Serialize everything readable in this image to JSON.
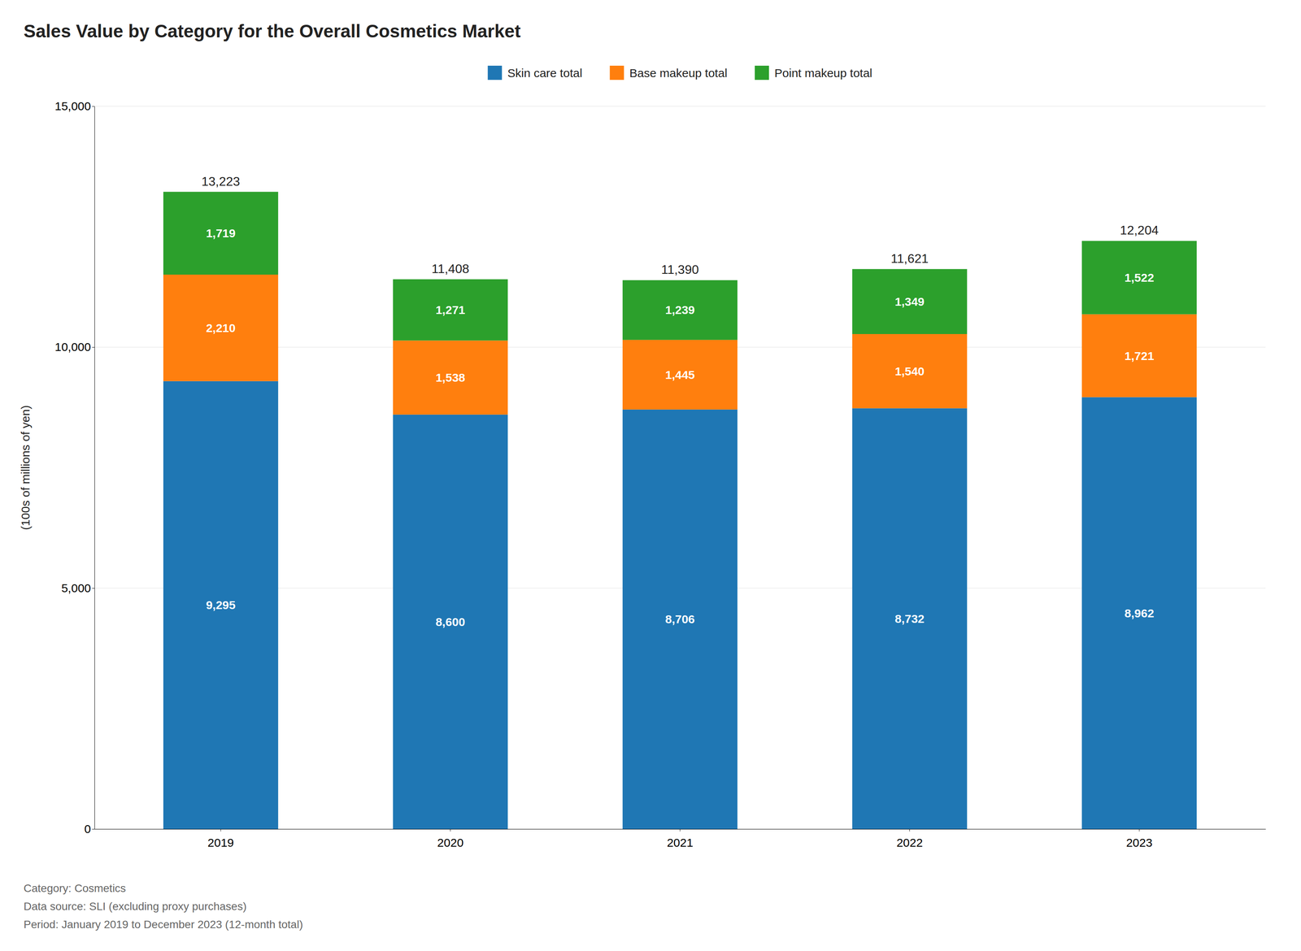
{
  "chart_data": {
    "type": "bar",
    "title": "Sales Value by Category for the Overall Cosmetics Market",
    "ylabel": "(100s of millions of yen)",
    "annotations": [
      "Category: Cosmetics",
      "Data source: SLI (excluding proxy purchases)",
      "Period: January 2019 to December 2023 (12-month total)"
    ],
    "categories": [
      "2019",
      "2020",
      "2021",
      "2022",
      "2023"
    ],
    "series": [
      {
        "name": "Skin care total",
        "values": [
          9295,
          8600,
          8706,
          8732,
          8962
        ],
        "value_labels": [
          "9,295",
          "8,600",
          "8,706",
          "8,732",
          "8,962"
        ]
      },
      {
        "name": "Base makeup total",
        "values": [
          2210,
          1538,
          1445,
          1540,
          1721
        ],
        "value_labels": [
          "2,210",
          "1,538",
          "1,445",
          "1,540",
          "1,721"
        ]
      },
      {
        "name": "Point makeup total",
        "values": [
          1719,
          1271,
          1239,
          1349,
          1522
        ],
        "value_labels": [
          "1,719",
          "1,271",
          "1,239",
          "1,349",
          "1,522"
        ]
      }
    ],
    "totals": [
      13223,
      11408,
      11390,
      11621,
      12204
    ],
    "total_labels": [
      "13,223",
      "11,408",
      "11,390",
      "11,621",
      "12,204"
    ],
    "ylim": [
      0,
      15000
    ],
    "yticks": [
      0,
      {
        "value": 5000,
        "label": "5,000"
      },
      {
        "value": 10000,
        "label": "10,000"
      },
      {
        "value": 15000,
        "label": "15,000"
      }
    ],
    "stacked": true,
    "data_labels": true,
    "grid": true,
    "legend": "top"
  }
}
